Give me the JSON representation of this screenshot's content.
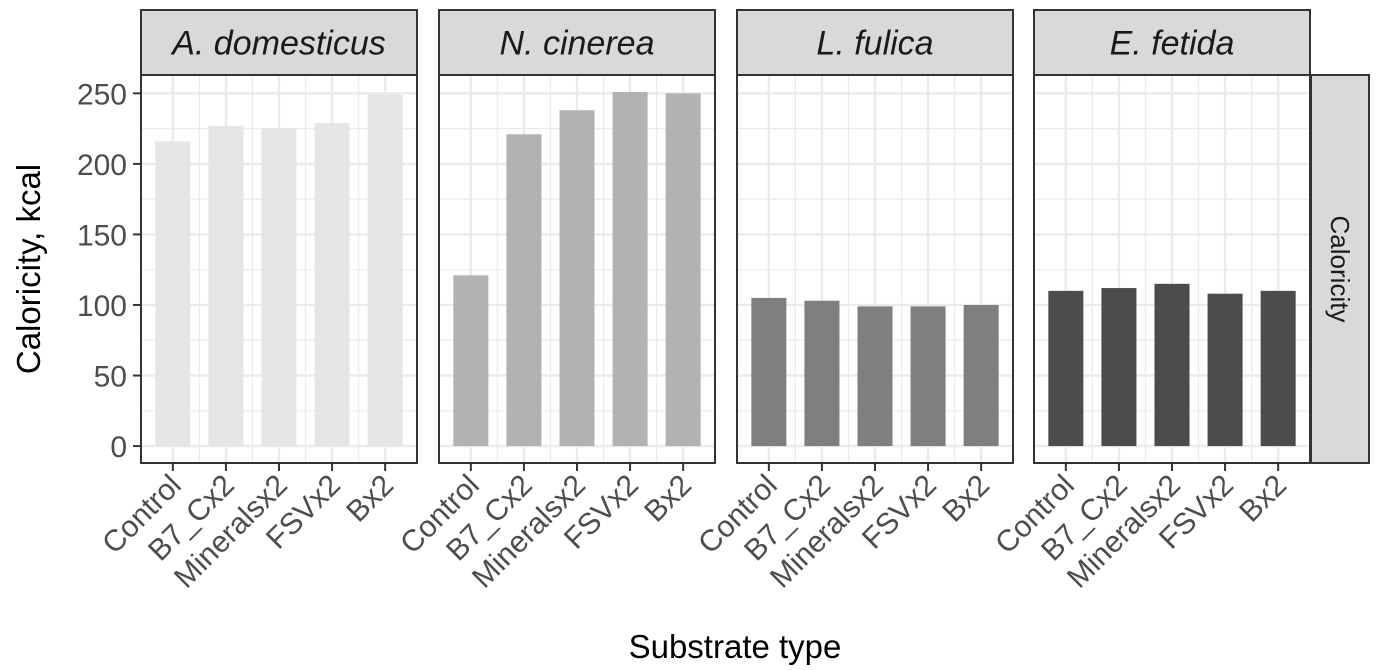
{
  "chart_data": {
    "type": "bar",
    "xlabel": "Substrate type",
    "ylabel": "Caloricity, kcal",
    "row_strip": "Caloricity",
    "ylim": [
      -12,
      263
    ],
    "yticks": [
      0,
      50,
      100,
      150,
      200,
      250
    ],
    "grid": true,
    "legend": "none",
    "categories": [
      "Control",
      "B7_Cx2",
      "Mineralsx2",
      "FSVx2",
      "Bx2"
    ],
    "panels": [
      {
        "name": "A. domesticus",
        "color": "#e5e5e5",
        "values": [
          216,
          227,
          225,
          229,
          249
        ]
      },
      {
        "name": "N. cinerea",
        "color": "#b2b2b2",
        "values": [
          121,
          221,
          238,
          251,
          250
        ]
      },
      {
        "name": "L. fulica",
        "color": "#7f7f7f",
        "values": [
          105,
          103,
          99,
          99,
          100
        ]
      },
      {
        "name": "E. fetida",
        "color": "#4c4c4c",
        "values": [
          110,
          112,
          115,
          108,
          110
        ]
      }
    ]
  }
}
